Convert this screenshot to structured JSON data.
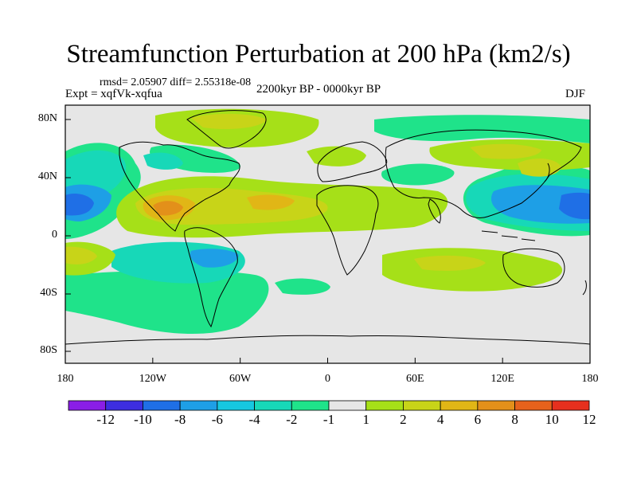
{
  "title": "Streamfunction Perturbation at 200 hPa (km2/s)",
  "stats": "rmsd= 2.05907 diff= 2.55318e-08",
  "experiment": "Expt = xqfVk-xqfua",
  "period": "2200kyr BP - 0000kyr BP",
  "season": "DJF",
  "lat_ticks": [
    "80N",
    "40N",
    "0",
    "40S",
    "80S"
  ],
  "lon_ticks": [
    "180",
    "120W",
    "60W",
    "0",
    "60E",
    "120E",
    "180"
  ],
  "colorbar": {
    "labels": [
      "-12",
      "-10",
      "-8",
      "-6",
      "-4",
      "-2",
      "-1",
      "1",
      "2",
      "4",
      "6",
      "8",
      "10",
      "12"
    ],
    "colors": [
      "#8a1ee6",
      "#3d2ee0",
      "#1f6fe6",
      "#1e9fe6",
      "#16c7e0",
      "#17d8b8",
      "#1fe38a",
      "#e6e6e6",
      "#a6e018",
      "#c8d418",
      "#e1b616",
      "#e3901a",
      "#e6621c",
      "#e6301e"
    ]
  },
  "regions": [
    {
      "sign": "negative",
      "level": "-8",
      "location": "central north Pacific near 20N"
    },
    {
      "sign": "negative",
      "level": "-6",
      "location": "western Pacific near 20N, 150E"
    },
    {
      "sign": "positive",
      "level": "6",
      "location": "eastern Pacific / Mexico near 20N"
    },
    {
      "sign": "positive",
      "level": "4",
      "location": "north Atlantic near 20N"
    },
    {
      "sign": "negative",
      "level": "-4",
      "location": "south America / south Pacific near 20S"
    },
    {
      "sign": "positive",
      "level": "2",
      "location": "Greenland / Arctic"
    },
    {
      "sign": "positive",
      "level": "4",
      "location": "Siberia near 50N"
    },
    {
      "sign": "positive",
      "level": "4",
      "location": "Indian Ocean near 20S"
    }
  ]
}
